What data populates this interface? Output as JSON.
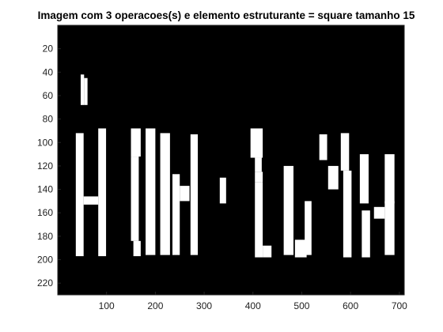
{
  "chart_data": {
    "type": "heatmap",
    "title": "Imagem com 3 operacoes(s) e elemento estruturante = square tamanho 15",
    "xlim": [
      0,
      710
    ],
    "ylim": [
      230,
      0
    ],
    "x_ticks": [
      100,
      200,
      300,
      400,
      500,
      600,
      700
    ],
    "y_ticks": [
      20,
      40,
      60,
      80,
      100,
      120,
      140,
      160,
      180,
      200,
      220
    ],
    "colormap": {
      "background": "#000000",
      "foreground": "#ffffff"
    },
    "grid": false,
    "foreground_regions": [
      {
        "x0": 47,
        "x1": 54,
        "y0": 42,
        "y1": 68
      },
      {
        "x0": 54,
        "x1": 61,
        "y0": 45,
        "y1": 68
      },
      {
        "x0": 37,
        "x1": 53,
        "y0": 92,
        "y1": 197
      },
      {
        "x0": 53,
        "x1": 83,
        "y0": 146,
        "y1": 153
      },
      {
        "x0": 83,
        "x1": 99,
        "y0": 88,
        "y1": 197
      },
      {
        "x0": 150,
        "x1": 170,
        "y0": 88,
        "y1": 112
      },
      {
        "x0": 150,
        "x1": 166,
        "y0": 112,
        "y1": 184
      },
      {
        "x0": 155,
        "x1": 170,
        "y0": 184,
        "y1": 197
      },
      {
        "x0": 180,
        "x1": 200,
        "y0": 88,
        "y1": 196
      },
      {
        "x0": 210,
        "x1": 230,
        "y0": 92,
        "y1": 196
      },
      {
        "x0": 235,
        "x1": 250,
        "y0": 127,
        "y1": 196
      },
      {
        "x0": 250,
        "x1": 270,
        "y0": 137,
        "y1": 150
      },
      {
        "x0": 272,
        "x1": 287,
        "y0": 93,
        "y1": 196
      },
      {
        "x0": 332,
        "x1": 345,
        "y0": 130,
        "y1": 152
      },
      {
        "x0": 395,
        "x1": 420,
        "y0": 88,
        "y1": 113
      },
      {
        "x0": 404,
        "x1": 418,
        "y0": 113,
        "y1": 125
      },
      {
        "x0": 404,
        "x1": 420,
        "y0": 125,
        "y1": 134
      },
      {
        "x0": 404,
        "x1": 420,
        "y0": 134,
        "y1": 198
      },
      {
        "x0": 420,
        "x1": 438,
        "y0": 188,
        "y1": 198
      },
      {
        "x0": 463,
        "x1": 483,
        "y0": 120,
        "y1": 196
      },
      {
        "x0": 486,
        "x1": 510,
        "y0": 183,
        "y1": 198
      },
      {
        "x0": 506,
        "x1": 520,
        "y0": 150,
        "y1": 196
      },
      {
        "x0": 536,
        "x1": 552,
        "y0": 93,
        "y1": 115
      },
      {
        "x0": 554,
        "x1": 575,
        "y0": 120,
        "y1": 140
      },
      {
        "x0": 580,
        "x1": 597,
        "y0": 92,
        "y1": 124
      },
      {
        "x0": 585,
        "x1": 602,
        "y0": 124,
        "y1": 198
      },
      {
        "x0": 619,
        "x1": 637,
        "y0": 110,
        "y1": 152
      },
      {
        "x0": 623,
        "x1": 640,
        "y0": 158,
        "y1": 198
      },
      {
        "x0": 648,
        "x1": 670,
        "y0": 155,
        "y1": 165
      },
      {
        "x0": 670,
        "x1": 690,
        "y0": 110,
        "y1": 152
      },
      {
        "x0": 670,
        "x1": 690,
        "y0": 150,
        "y1": 196
      }
    ]
  }
}
